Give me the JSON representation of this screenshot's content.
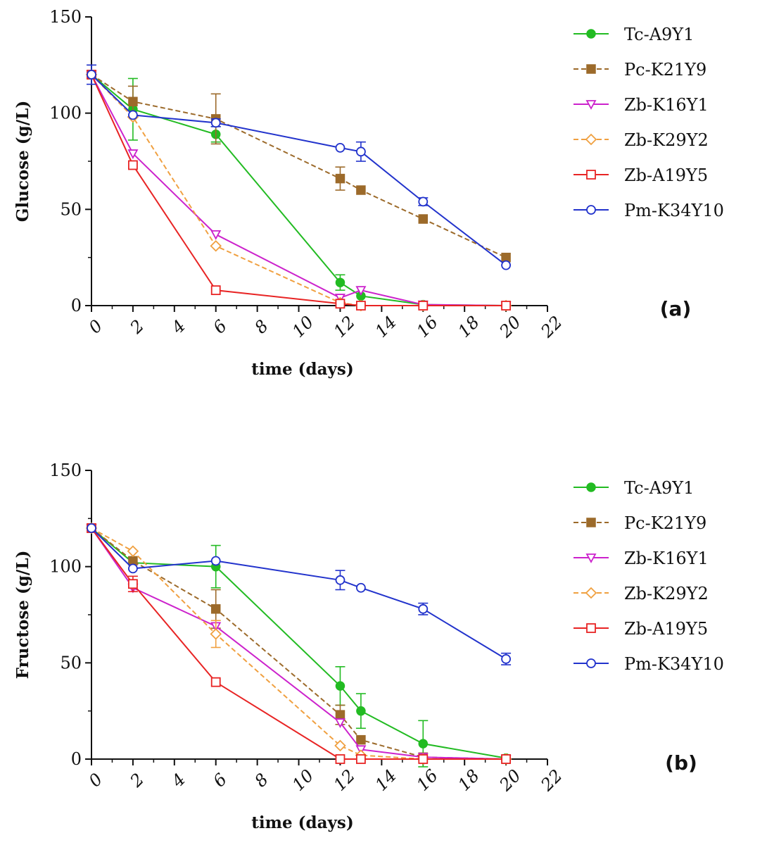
{
  "chart_data": [
    {
      "type": "line",
      "panel_label": "(a)",
      "xlabel": "time (days)",
      "ylabel": "Glucose (g/L)",
      "xlim": [
        0,
        22
      ],
      "ylim": [
        0,
        150
      ],
      "xticks": [
        "0",
        "2",
        "4",
        "6",
        "8",
        "10",
        "12",
        "14",
        "16",
        "18",
        "20",
        "22"
      ],
      "yticks": [
        "0",
        "50",
        "100",
        "150"
      ],
      "legend_position": "right",
      "x": [
        0,
        2,
        6,
        12,
        13,
        16,
        20
      ],
      "series": [
        {
          "name": "Tc-A9Y1",
          "color": "#22bb22",
          "marker": "filled-circle",
          "dashed": false,
          "values": [
            120,
            102,
            89,
            12,
            5,
            0.5,
            0
          ],
          "errors": [
            0,
            16,
            4,
            4,
            0,
            0,
            0
          ]
        },
        {
          "name": "Pc-K21Y9",
          "color": "#9c6a2a",
          "marker": "filled-square",
          "dashed": true,
          "values": [
            120,
            106,
            97,
            66,
            60,
            45,
            25
          ],
          "errors": [
            0,
            8,
            13,
            6,
            0,
            0,
            0
          ]
        },
        {
          "name": "Zb-K16Y1",
          "color": "#cc22cc",
          "marker": "open-triangle-down",
          "dashed": false,
          "values": [
            120,
            79,
            37,
            4,
            8,
            0.5,
            0
          ],
          "errors": [
            0,
            0,
            0,
            0,
            0,
            0,
            0
          ]
        },
        {
          "name": "Zb-K29Y2",
          "color": "#f0a040",
          "marker": "open-diamond",
          "dashed": true,
          "values": [
            120,
            98,
            31,
            1.5,
            0,
            0,
            0
          ],
          "errors": [
            0,
            0,
            0,
            0,
            0,
            0,
            0
          ]
        },
        {
          "name": "Zb-A19Y5",
          "color": "#e82424",
          "marker": "open-square",
          "dashed": false,
          "values": [
            120,
            73,
            8,
            1,
            0,
            0,
            0
          ],
          "errors": [
            0,
            0,
            0,
            0,
            0,
            0,
            0
          ]
        },
        {
          "name": "Pm-K34Y10",
          "color": "#2233cc",
          "marker": "open-circle",
          "dashed": false,
          "values": [
            120,
            99,
            95,
            82,
            80,
            54,
            21
          ],
          "errors": [
            5,
            0,
            2,
            0,
            5,
            2,
            0
          ]
        }
      ]
    },
    {
      "type": "line",
      "panel_label": "(b)",
      "xlabel": "time (days)",
      "ylabel": "Fructose (g/L)",
      "xlim": [
        0,
        22
      ],
      "ylim": [
        0,
        150
      ],
      "xticks": [
        "0",
        "2",
        "4",
        "6",
        "8",
        "10",
        "12",
        "14",
        "16",
        "18",
        "20",
        "22"
      ],
      "yticks": [
        "0",
        "50",
        "100",
        "150"
      ],
      "legend_position": "right",
      "x": [
        0,
        2,
        6,
        12,
        13,
        16,
        20
      ],
      "series": [
        {
          "name": "Tc-A9Y1",
          "color": "#22bb22",
          "marker": "filled-circle",
          "dashed": false,
          "values": [
            120,
            102,
            100,
            38,
            25,
            8,
            0.5
          ],
          "errors": [
            0,
            0,
            11,
            10,
            9,
            12,
            0
          ]
        },
        {
          "name": "Pc-K21Y9",
          "color": "#9c6a2a",
          "marker": "filled-square",
          "dashed": true,
          "values": [
            120,
            103,
            78,
            23,
            10,
            1,
            0
          ],
          "errors": [
            0,
            0,
            10,
            5,
            0,
            0,
            0
          ]
        },
        {
          "name": "Zb-K16Y1",
          "color": "#cc22cc",
          "marker": "open-triangle-down",
          "dashed": false,
          "values": [
            120,
            89,
            69,
            19,
            5,
            1,
            0
          ],
          "errors": [
            0,
            0,
            0,
            0,
            0,
            0,
            0
          ]
        },
        {
          "name": "Zb-K29Y2",
          "color": "#f0a040",
          "marker": "open-diamond",
          "dashed": true,
          "values": [
            120,
            108,
            65,
            7,
            2,
            0,
            0
          ],
          "errors": [
            0,
            0,
            7,
            0,
            0,
            0,
            0
          ]
        },
        {
          "name": "Zb-A19Y5",
          "color": "#e82424",
          "marker": "open-square",
          "dashed": false,
          "values": [
            120,
            91,
            40,
            0,
            0,
            0,
            0
          ],
          "errors": [
            0,
            4,
            0,
            0,
            0,
            0,
            0
          ]
        },
        {
          "name": "Pm-K34Y10",
          "color": "#2233cc",
          "marker": "open-circle",
          "dashed": false,
          "values": [
            120,
            99,
            103,
            93,
            89,
            78,
            52
          ],
          "errors": [
            0,
            0,
            0,
            5,
            0,
            3,
            3
          ]
        }
      ]
    }
  ]
}
